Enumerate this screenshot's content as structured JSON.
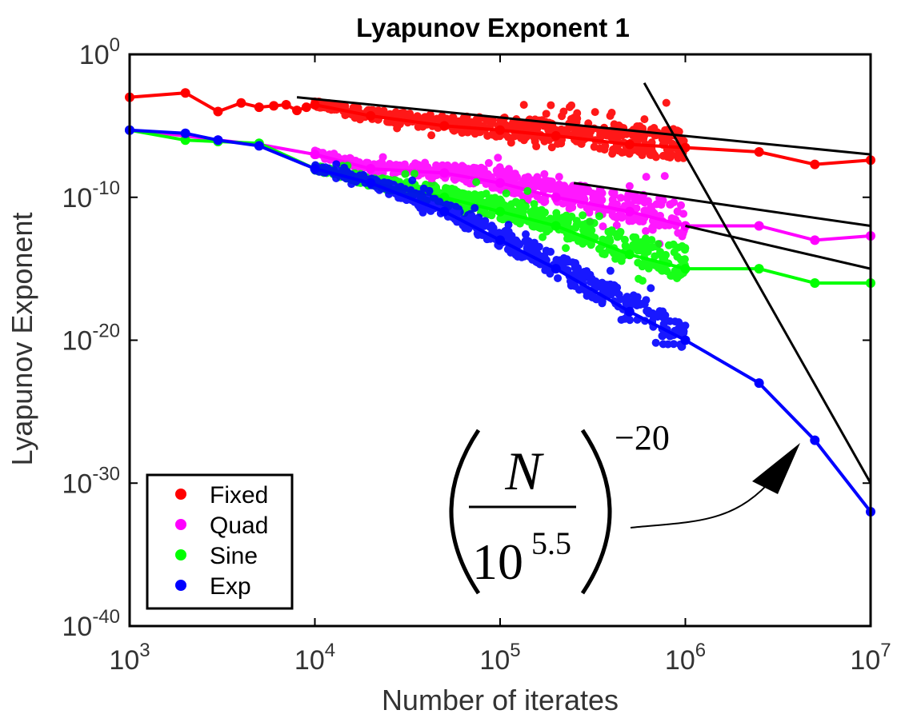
{
  "chart_data": {
    "type": "scatter",
    "title": "Lyapunov Exponent 1",
    "xlabel": "Number of iterates",
    "ylabel": "Lyapunov Exponent",
    "xscale": "log",
    "yscale": "log",
    "xlim": [
      1000,
      10000000
    ],
    "ylim": [
      1e-40,
      1
    ],
    "grid": false,
    "legend_placement": "bottom-left",
    "x_ticks": [
      {
        "base": "10",
        "exp": "3",
        "value": 1000
      },
      {
        "base": "10",
        "exp": "4",
        "value": 10000
      },
      {
        "base": "10",
        "exp": "5",
        "value": 100000
      },
      {
        "base": "10",
        "exp": "6",
        "value": 1000000
      },
      {
        "base": "10",
        "exp": "7",
        "value": 10000000
      }
    ],
    "y_ticks": [
      {
        "base": "10",
        "exp": "0",
        "value": 1
      },
      {
        "base": "10",
        "exp": "-10",
        "value": 1e-10
      },
      {
        "base": "10",
        "exp": "-20",
        "value": 1e-20
      },
      {
        "base": "10",
        "exp": "-30",
        "value": 1e-30
      },
      {
        "base": "10",
        "exp": "-40",
        "value": 1e-40
      }
    ],
    "series": [
      {
        "name": "Fixed",
        "color": "#ff0000",
        "x": [
          1000,
          2000,
          3000,
          4000,
          5000,
          6000,
          7000,
          8000,
          9000,
          10000,
          20000,
          50000,
          100000,
          200000,
          500000,
          1000000,
          2500000,
          5000000,
          10000000
        ],
        "y": [
          0.001,
          0.002,
          0.0001,
          0.0004,
          0.0002,
          0.00025,
          0.0003,
          0.00012,
          0.0002,
          0.0003,
          5e-05,
          1e-05,
          5e-06,
          2e-06,
          5e-07,
          3e-07,
          1.5e-07,
          2e-08,
          4e-08
        ]
      },
      {
        "name": "Quad",
        "color": "#ff00ff",
        "x": [
          1000,
          2000,
          3000,
          5000,
          10000,
          20000,
          50000,
          100000,
          200000,
          500000,
          1000000,
          2500000,
          5000000,
          10000000
        ],
        "y": [
          5e-06,
          2e-06,
          1e-06,
          5e-07,
          1e-07,
          1e-08,
          5e-09,
          1e-09,
          1e-10,
          1e-11,
          1e-12,
          1e-12,
          1e-13,
          2e-13
        ]
      },
      {
        "name": "Sine",
        "color": "#00ff00",
        "x": [
          1000,
          2000,
          3000,
          5000,
          10000,
          20000,
          50000,
          100000,
          200000,
          500000,
          1000000,
          2500000,
          5000000,
          10000000
        ],
        "y": [
          5e-06,
          1e-06,
          8e-07,
          6e-07,
          1e-08,
          1e-09,
          1e-10,
          1e-11,
          1e-12,
          1e-14,
          1e-15,
          1e-15,
          1e-16,
          1e-16
        ]
      },
      {
        "name": "Exp",
        "color": "#0000ff",
        "x": [
          1000,
          2000,
          3000,
          5000,
          10000,
          20000,
          50000,
          100000,
          200000,
          500000,
          1000000,
          2500000,
          5000000,
          10000000
        ],
        "y": [
          5e-06,
          3e-06,
          1e-06,
          4e-07,
          1e-08,
          1e-09,
          1e-11,
          1e-13,
          1e-15,
          1e-18,
          1e-20,
          1e-23,
          1e-27,
          1e-32
        ]
      }
    ],
    "fit_lines": [
      {
        "x": [
          8000,
          10000000
        ],
        "y": [
          0.001,
          1e-07
        ]
      },
      {
        "x": [
          250000,
          10000000
        ],
        "y": [
          1e-09,
          1e-12
        ]
      },
      {
        "x": [
          1000000,
          10000000
        ],
        "y": [
          1e-12,
          1e-15
        ]
      },
      {
        "x": [
          600000,
          10000000
        ],
        "y": [
          0.01,
          1e-30
        ]
      }
    ],
    "annotation": {
      "numerator": "N",
      "denominator": "10",
      "denominator_exponent": "5.5",
      "outer_exponent": "−20"
    }
  }
}
